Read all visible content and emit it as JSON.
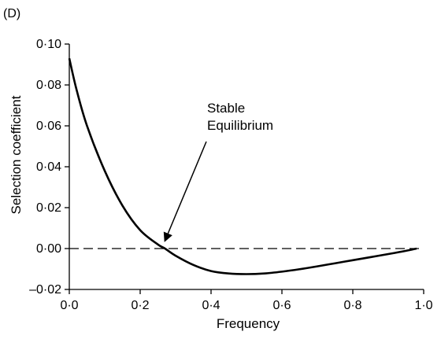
{
  "panel_label": "(D)",
  "chart_data": {
    "type": "line",
    "title": "",
    "xlabel": "Frequency",
    "ylabel": "Selection coefficient",
    "xlim": [
      0,
      1
    ],
    "ylim": [
      -0.02,
      0.1
    ],
    "xticks": [
      0,
      0.2,
      0.4,
      0.6,
      0.8,
      1.0
    ],
    "xtick_labels": [
      "0·0",
      "0·2",
      "0·4",
      "0·6",
      "0·8",
      "1·0"
    ],
    "yticks": [
      -0.02,
      0,
      0.02,
      0.04,
      0.06,
      0.08,
      0.1
    ],
    "ytick_labels": [
      "–0·02",
      "0·00",
      "0·02",
      "0·04",
      "0·06",
      "0·08",
      "0·10"
    ],
    "grid": false,
    "series": [
      {
        "name": "",
        "color": "#000000",
        "style": "solid",
        "x": [
          0.0,
          0.02,
          0.05,
          0.1,
          0.15,
          0.2,
          0.25,
          0.27,
          0.3,
          0.35,
          0.4,
          0.45,
          0.5,
          0.55,
          0.6,
          0.65,
          0.7,
          0.75,
          0.8,
          0.85,
          0.9,
          0.95,
          0.98
        ],
        "y": [
          0.093,
          0.078,
          0.06,
          0.038,
          0.021,
          0.009,
          0.002,
          0.0,
          -0.0035,
          -0.008,
          -0.011,
          -0.0122,
          -0.0125,
          -0.0122,
          -0.0113,
          -0.0101,
          -0.0087,
          -0.0072,
          -0.0057,
          -0.0042,
          -0.0027,
          -0.0011,
          0.0
        ]
      }
    ],
    "reference_lines": [
      {
        "axis": "y",
        "value": 0,
        "style": "dashed",
        "color": "#000000"
      }
    ],
    "annotations": [
      {
        "text_lines": [
          "Stable",
          "Equilibrium"
        ],
        "arrow_to_x": 0.27,
        "arrow_to_y": 0.0
      }
    ]
  }
}
